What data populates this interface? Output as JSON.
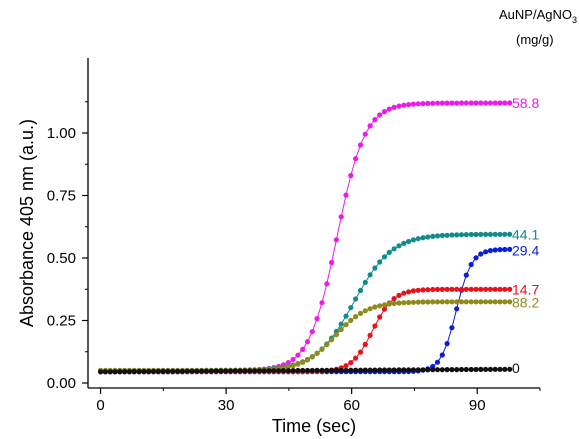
{
  "chart_data": {
    "type": "scatter",
    "xlabel": "Time (sec)",
    "ylabel": "Absorbance 405 nm (a.u.)",
    "legend_title": [
      "AuNP/AgNO",
      "3",
      "(mg/g)"
    ],
    "xlim": [
      -3,
      105
    ],
    "ylim": [
      -0.02,
      1.3
    ],
    "xticks": [
      0,
      30,
      60,
      90
    ],
    "yticks": [
      0.0,
      0.25,
      0.5,
      0.75,
      1.0
    ],
    "xtick_labels": [
      "0",
      "30",
      "60",
      "90"
    ],
    "ytick_labels": [
      "0.00",
      "0.25",
      "0.50",
      "0.75",
      "1.00"
    ],
    "series": [
      {
        "label": "58.8",
        "color": "#ee1be8",
        "y0": 0.05,
        "ymax": 1.12,
        "mid": 56.5,
        "k": 0.3
      },
      {
        "label": "44.1",
        "color": "#138b8b",
        "y0": 0.05,
        "ymax": 0.595,
        "mid": 60.5,
        "k": 0.22
      },
      {
        "label": "29.4",
        "color": "#0b1fd8",
        "y0": 0.045,
        "ymax": 0.535,
        "mid": 85,
        "k": 0.55
      },
      {
        "label": "14.7",
        "color": "#e8121a",
        "y0": 0.045,
        "ymax": 0.375,
        "mid": 65,
        "k": 0.4
      },
      {
        "label": "88.2",
        "color": "#8f8a1c",
        "y0": 0.05,
        "ymax": 0.325,
        "mid": 56,
        "k": 0.26
      },
      {
        "label": "0",
        "color": "#111111",
        "y0": 0.045,
        "ymax": 0.055,
        "mid": 50,
        "k": 0.05
      }
    ]
  }
}
